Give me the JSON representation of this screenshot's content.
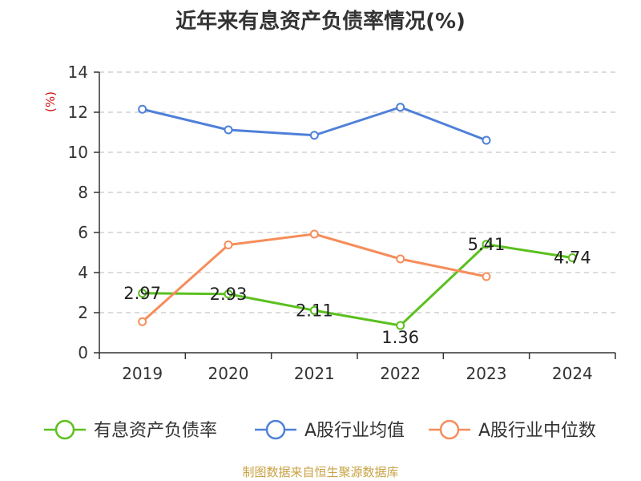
{
  "chart_data": {
    "type": "line",
    "title": "近年来有息资产负债率情况(%)",
    "ylabel": "(%)",
    "ylim": [
      0,
      14
    ],
    "yticks": [
      0,
      2,
      4,
      6,
      8,
      10,
      12,
      14
    ],
    "categories": [
      "2019",
      "2020",
      "2021",
      "2022",
      "2023",
      "2024"
    ],
    "grid": true,
    "legend": "bottom",
    "series": [
      {
        "name": "有息资产负债率",
        "color": "#5cc01f",
        "values": [
          2.97,
          2.93,
          2.11,
          1.36,
          5.41,
          4.74
        ],
        "labels": [
          "2.97",
          "2.93",
          "2.11",
          "1.36",
          "5.41",
          "4.74"
        ]
      },
      {
        "name": "A股行业均值",
        "color": "#4f80d9",
        "values": [
          12.15,
          11.12,
          10.85,
          12.25,
          10.6,
          null
        ]
      },
      {
        "name": "A股行业中位数",
        "color": "#f68d5a",
        "values": [
          1.55,
          5.38,
          5.92,
          4.68,
          3.8,
          null
        ]
      }
    ],
    "source": "制图数据来自恒生聚源数据库"
  }
}
